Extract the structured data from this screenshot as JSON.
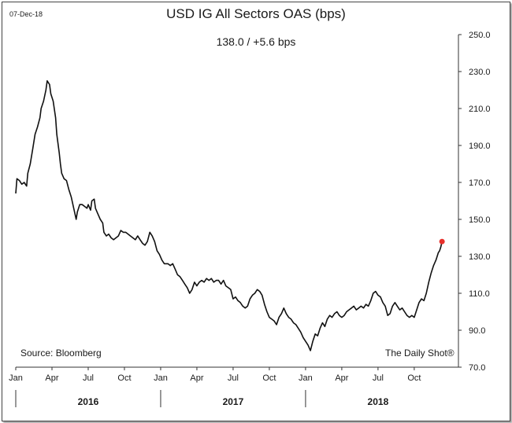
{
  "header": {
    "date": "07-Dec-18"
  },
  "colors": {
    "line": "#111111",
    "last_point": "#e8302b",
    "axis": "#333333"
  },
  "chart_data": {
    "type": "line",
    "title": "USD IG All Sectors OAS (bps)",
    "subtitle": "138.0  /  +5.6 bps",
    "source": "Source: Bloomberg",
    "credit": "The Daily Shot®",
    "ylim": [
      70,
      250
    ],
    "y_ticks": [
      "70.0",
      "90.0",
      "110.0",
      "130.0",
      "150.0",
      "170.0",
      "190.0",
      "210.0",
      "230.0",
      "250.0"
    ],
    "x_ticks": [
      {
        "label": "Jan",
        "month": 0
      },
      {
        "label": "Apr",
        "month": 3
      },
      {
        "label": "Jul",
        "month": 6
      },
      {
        "label": "Oct",
        "month": 9
      },
      {
        "label": "Jan",
        "month": 12
      },
      {
        "label": "Apr",
        "month": 15
      },
      {
        "label": "Jul",
        "month": 18
      },
      {
        "label": "Oct",
        "month": 21
      },
      {
        "label": "Jan",
        "month": 24
      },
      {
        "label": "Apr",
        "month": 27
      },
      {
        "label": "Jul",
        "month": 30
      },
      {
        "label": "Oct",
        "month": 33
      }
    ],
    "years": [
      {
        "label": "2016",
        "start_month": 0
      },
      {
        "label": "2017",
        "start_month": 12
      },
      {
        "label": "2018",
        "start_month": 24
      }
    ],
    "x_range_months": [
      0,
      35.3
    ],
    "series": [
      {
        "name": "USD IG All Sectors OAS",
        "points": [
          [
            0.0,
            164
          ],
          [
            0.1,
            172
          ],
          [
            0.3,
            171
          ],
          [
            0.5,
            169
          ],
          [
            0.7,
            170
          ],
          [
            0.9,
            168
          ],
          [
            1.0,
            175
          ],
          [
            1.2,
            180
          ],
          [
            1.4,
            188
          ],
          [
            1.6,
            196
          ],
          [
            1.8,
            200
          ],
          [
            2.0,
            205
          ],
          [
            2.1,
            210
          ],
          [
            2.3,
            214
          ],
          [
            2.5,
            220
          ],
          [
            2.6,
            225
          ],
          [
            2.8,
            223
          ],
          [
            2.9,
            218
          ],
          [
            3.1,
            214
          ],
          [
            3.3,
            205
          ],
          [
            3.4,
            196
          ],
          [
            3.6,
            186
          ],
          [
            3.7,
            180
          ],
          [
            3.8,
            175
          ],
          [
            4.0,
            172
          ],
          [
            4.2,
            171
          ],
          [
            4.4,
            166
          ],
          [
            4.6,
            162
          ],
          [
            4.8,
            156
          ],
          [
            5.0,
            150
          ],
          [
            5.1,
            154
          ],
          [
            5.3,
            158
          ],
          [
            5.5,
            158
          ],
          [
            5.7,
            157
          ],
          [
            5.9,
            156
          ],
          [
            6.0,
            158
          ],
          [
            6.2,
            155
          ],
          [
            6.3,
            160
          ],
          [
            6.5,
            161
          ],
          [
            6.6,
            156
          ],
          [
            6.8,
            153
          ],
          [
            7.0,
            150
          ],
          [
            7.2,
            148
          ],
          [
            7.3,
            143
          ],
          [
            7.5,
            141
          ],
          [
            7.7,
            142
          ],
          [
            7.9,
            140
          ],
          [
            8.1,
            139
          ],
          [
            8.3,
            140
          ],
          [
            8.5,
            141
          ],
          [
            8.7,
            144
          ],
          [
            8.9,
            143
          ],
          [
            9.1,
            143
          ],
          [
            9.3,
            142
          ],
          [
            9.5,
            141
          ],
          [
            9.7,
            140
          ],
          [
            9.9,
            139
          ],
          [
            10.1,
            141
          ],
          [
            10.3,
            139
          ],
          [
            10.5,
            137
          ],
          [
            10.7,
            136
          ],
          [
            10.9,
            138
          ],
          [
            11.1,
            143
          ],
          [
            11.3,
            141
          ],
          [
            11.5,
            138
          ],
          [
            11.7,
            133
          ],
          [
            11.9,
            131
          ],
          [
            12.1,
            128
          ],
          [
            12.3,
            126
          ],
          [
            12.6,
            126
          ],
          [
            12.8,
            125
          ],
          [
            13.0,
            126
          ],
          [
            13.2,
            123
          ],
          [
            13.4,
            120
          ],
          [
            13.6,
            119
          ],
          [
            13.8,
            117
          ],
          [
            14.0,
            115
          ],
          [
            14.2,
            113
          ],
          [
            14.4,
            110
          ],
          [
            14.6,
            112
          ],
          [
            14.8,
            116
          ],
          [
            15.0,
            114
          ],
          [
            15.2,
            116
          ],
          [
            15.4,
            117
          ],
          [
            15.6,
            116
          ],
          [
            15.8,
            118
          ],
          [
            16.0,
            117
          ],
          [
            16.2,
            118
          ],
          [
            16.4,
            116
          ],
          [
            16.6,
            117
          ],
          [
            16.8,
            117
          ],
          [
            17.0,
            115
          ],
          [
            17.2,
            117
          ],
          [
            17.4,
            114
          ],
          [
            17.6,
            113
          ],
          [
            17.8,
            112
          ],
          [
            18.0,
            107
          ],
          [
            18.2,
            108
          ],
          [
            18.4,
            106
          ],
          [
            18.6,
            105
          ],
          [
            18.8,
            103
          ],
          [
            19.0,
            102
          ],
          [
            19.2,
            103
          ],
          [
            19.4,
            107
          ],
          [
            19.6,
            109
          ],
          [
            19.8,
            110
          ],
          [
            20.0,
            112
          ],
          [
            20.2,
            111
          ],
          [
            20.4,
            109
          ],
          [
            20.6,
            104
          ],
          [
            20.8,
            100
          ],
          [
            21.0,
            97
          ],
          [
            21.2,
            96
          ],
          [
            21.4,
            95
          ],
          [
            21.6,
            93
          ],
          [
            21.8,
            97
          ],
          [
            22.0,
            99
          ],
          [
            22.2,
            102
          ],
          [
            22.4,
            99
          ],
          [
            22.6,
            97
          ],
          [
            22.8,
            96
          ],
          [
            23.0,
            94
          ],
          [
            23.2,
            93
          ],
          [
            23.4,
            91
          ],
          [
            23.6,
            89
          ],
          [
            23.8,
            86
          ],
          [
            24.0,
            84
          ],
          [
            24.2,
            82
          ],
          [
            24.4,
            79
          ],
          [
            24.6,
            84
          ],
          [
            24.8,
            88
          ],
          [
            25.0,
            87
          ],
          [
            25.2,
            91
          ],
          [
            25.4,
            94
          ],
          [
            25.6,
            92
          ],
          [
            25.8,
            96
          ],
          [
            26.0,
            98
          ],
          [
            26.2,
            97
          ],
          [
            26.4,
            99
          ],
          [
            26.6,
            100
          ],
          [
            26.8,
            98
          ],
          [
            27.0,
            97
          ],
          [
            27.2,
            98
          ],
          [
            27.4,
            100
          ],
          [
            27.6,
            101
          ],
          [
            27.8,
            102
          ],
          [
            28.0,
            103
          ],
          [
            28.2,
            101
          ],
          [
            28.4,
            102
          ],
          [
            28.6,
            103
          ],
          [
            28.8,
            102
          ],
          [
            29.0,
            104
          ],
          [
            29.2,
            103
          ],
          [
            29.4,
            106
          ],
          [
            29.6,
            110
          ],
          [
            29.8,
            111
          ],
          [
            30.0,
            109
          ],
          [
            30.2,
            108
          ],
          [
            30.4,
            105
          ],
          [
            30.6,
            103
          ],
          [
            30.8,
            98
          ],
          [
            31.0,
            99
          ],
          [
            31.2,
            103
          ],
          [
            31.4,
            105
          ],
          [
            31.6,
            103
          ],
          [
            31.8,
            101
          ],
          [
            32.0,
            102
          ],
          [
            32.2,
            100
          ],
          [
            32.4,
            98
          ],
          [
            32.6,
            97
          ],
          [
            32.8,
            98
          ],
          [
            33.0,
            97
          ],
          [
            33.2,
            101
          ],
          [
            33.4,
            105
          ],
          [
            33.6,
            107
          ],
          [
            33.8,
            106
          ],
          [
            34.0,
            110
          ],
          [
            34.2,
            116
          ],
          [
            34.4,
            121
          ],
          [
            34.6,
            125
          ],
          [
            34.8,
            128
          ],
          [
            35.0,
            132
          ],
          [
            35.1,
            133
          ],
          [
            35.2,
            135
          ],
          [
            35.3,
            138
          ]
        ]
      }
    ],
    "last_value": 138.0
  }
}
